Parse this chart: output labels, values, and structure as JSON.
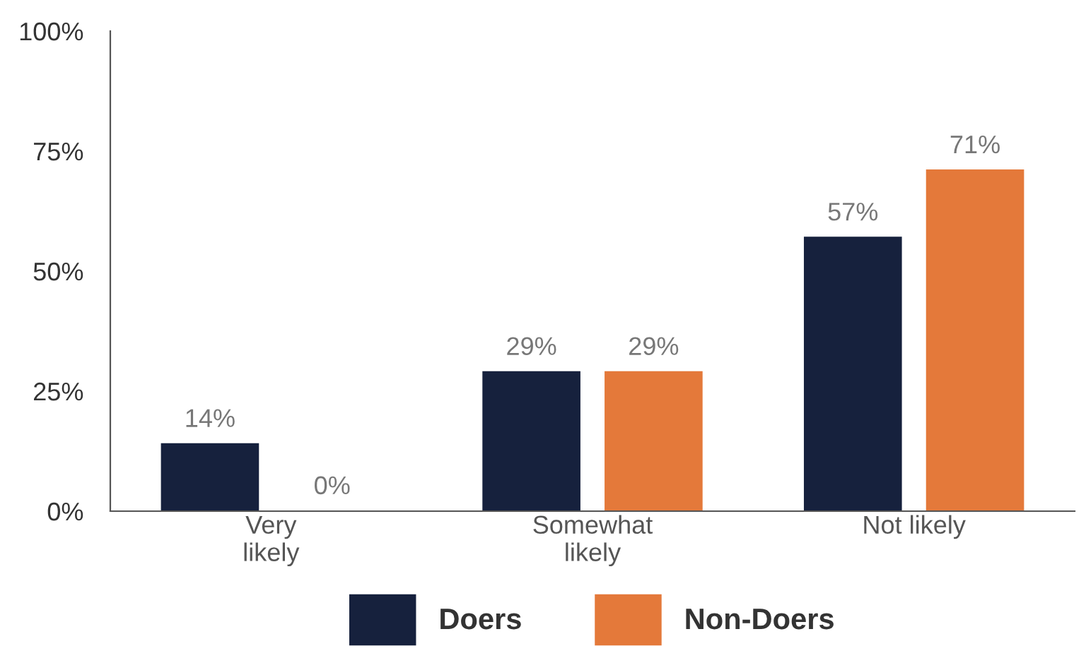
{
  "chart_data": {
    "type": "bar",
    "categories": [
      "Very\nlikely",
      "Somewhat\nlikely",
      "Not likely"
    ],
    "series": [
      {
        "name": "Doers",
        "color": "#16213d",
        "values": [
          14,
          29,
          57
        ],
        "value_labels": [
          "14%",
          "29%",
          "57%"
        ]
      },
      {
        "name": "Non-Doers",
        "color": "#e4793a",
        "values": [
          0,
          29,
          71
        ],
        "value_labels": [
          "0%",
          "29%",
          "71%"
        ]
      }
    ],
    "ylim": [
      0,
      100
    ],
    "yticks": [
      {
        "value": 0,
        "label": "0%"
      },
      {
        "value": 25,
        "label": "25%"
      },
      {
        "value": 50,
        "label": "50%"
      },
      {
        "value": 75,
        "label": "75%"
      },
      {
        "value": 100,
        "label": "100%"
      }
    ],
    "grid": false,
    "legend": "bottom"
  }
}
